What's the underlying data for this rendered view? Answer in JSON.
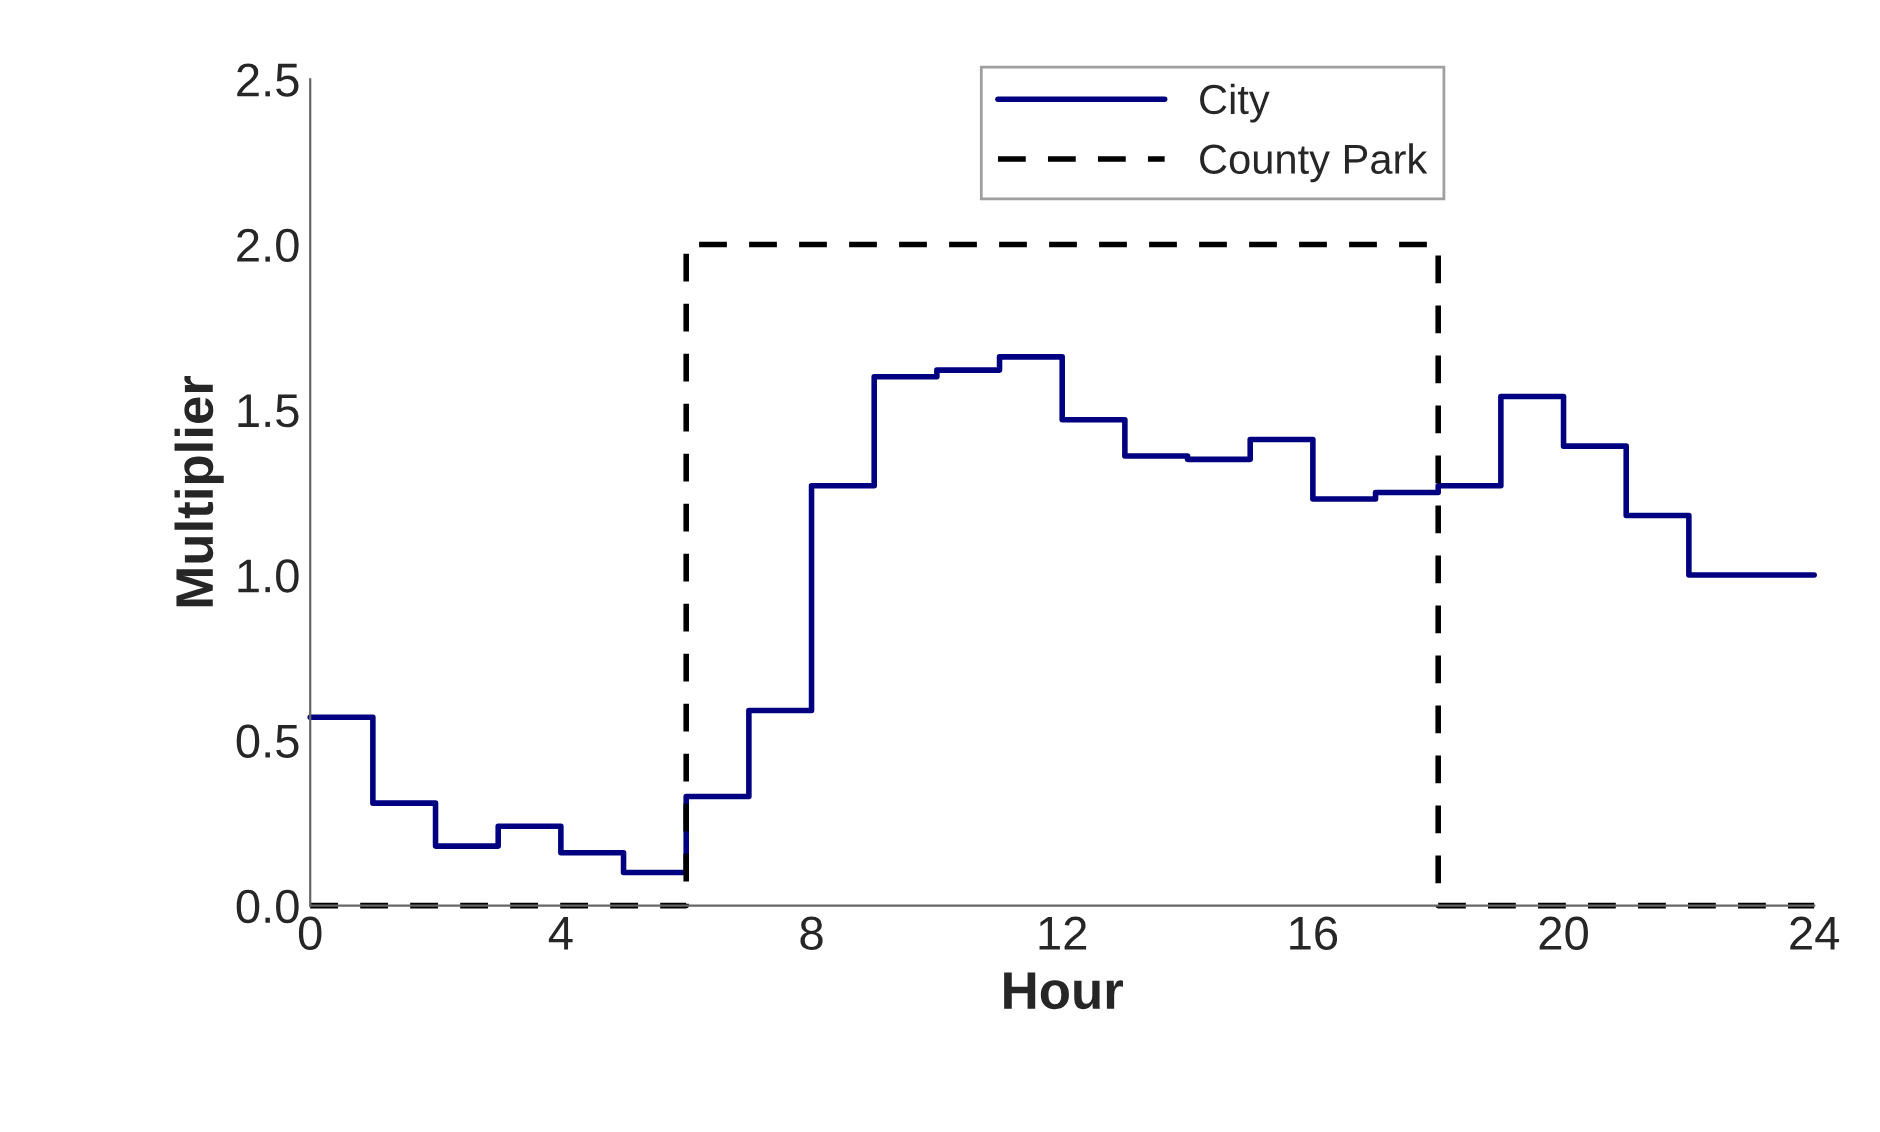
{
  "chart_data": {
    "type": "step",
    "xlabel": "Hour",
    "ylabel": "Multiplier",
    "series": [
      {
        "name": "City",
        "color": "#000080",
        "line_style": "solid",
        "x": [
          0,
          1,
          2,
          3,
          4,
          5,
          6,
          7,
          8,
          9,
          10,
          11,
          12,
          13,
          14,
          15,
          16,
          17,
          18,
          19,
          20,
          21,
          22,
          23,
          24
        ],
        "values": [
          0.57,
          0.31,
          0.18,
          0.24,
          0.16,
          0.1,
          0.33,
          0.59,
          1.27,
          1.6,
          1.62,
          1.66,
          1.47,
          1.36,
          1.35,
          1.41,
          1.23,
          1.25,
          1.27,
          1.54,
          1.39,
          1.18,
          1.0,
          1.0,
          1.0
        ]
      },
      {
        "name": "County Park",
        "color": "#000000",
        "line_style": "dashed",
        "x": [
          0,
          6,
          18,
          24
        ],
        "values": [
          0,
          2,
          0,
          0
        ]
      }
    ],
    "xlim": [
      0,
      24
    ],
    "xticks": [
      0,
      4,
      8,
      12,
      16,
      20,
      24
    ],
    "ylim": [
      0,
      2.5
    ],
    "yticks": [
      {
        "value": 0,
        "label": "0.0"
      },
      {
        "value": 0.5,
        "label": "0.5"
      },
      {
        "value": 1,
        "label": "1.0"
      },
      {
        "value": 1.5,
        "label": "1.5"
      },
      {
        "value": 2,
        "label": "2.0"
      },
      {
        "value": 2.5,
        "label": "2.5"
      }
    ],
    "legend": "top",
    "grid": false
  }
}
